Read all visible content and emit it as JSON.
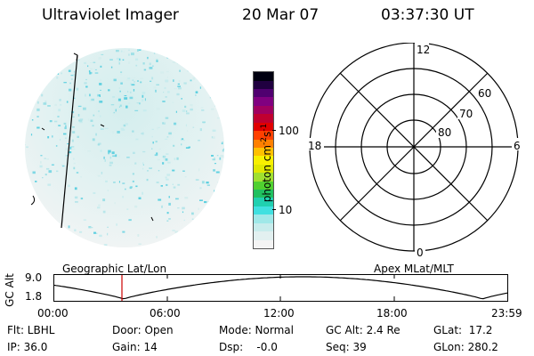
{
  "header": {
    "instrument": "Ultraviolet Imager",
    "date": "20 Mar 07",
    "time": "03:37:30 UT"
  },
  "colorbar": {
    "label_main": "photon cm",
    "label_sup1": "-2",
    "label_mid": "s",
    "label_sup2": "-1",
    "tick_100": "100",
    "tick_10": "10",
    "colors": [
      "#f4f4f4",
      "#e2f0f0",
      "#c8ecec",
      "#a0e8e8",
      "#40e0e0",
      "#20d0b0",
      "#20c060",
      "#50d030",
      "#a0e030",
      "#e0e800",
      "#f8f000",
      "#ffc000",
      "#ff8000",
      "#ff4000",
      "#e00000",
      "#c00030",
      "#a00060",
      "#800080",
      "#500070",
      "#200040",
      "#000010"
    ]
  },
  "polar": {
    "mlt_top": "12",
    "mlt_left": "18",
    "mlt_right": "6",
    "mlt_bottom": "0",
    "lat_60": "60",
    "lat_70": "70",
    "lat_80": "80"
  },
  "timeline": {
    "ylabel": "GC Alt",
    "y_high": "9.0",
    "y_low": "1.8",
    "left_title": "Geographic Lat/Lon",
    "right_title": "Apex MLat/MLT",
    "times": [
      "00:00",
      "06:00",
      "12:00",
      "18:00",
      "23:59"
    ],
    "marker_color": "#cc0000"
  },
  "info": {
    "flt": "Flt: LBHL",
    "door": "Door: Open",
    "mode": "Mode: Normal",
    "gcalt": "GC Alt: 2.4 Re",
    "glat": "GLat:  17.2",
    "ip": "IP: 36.0",
    "gain": "Gain: 14",
    "dsp": "Dsp:    -0.0",
    "seq": "Seq: 39",
    "glon": "GLon: 280.2"
  }
}
